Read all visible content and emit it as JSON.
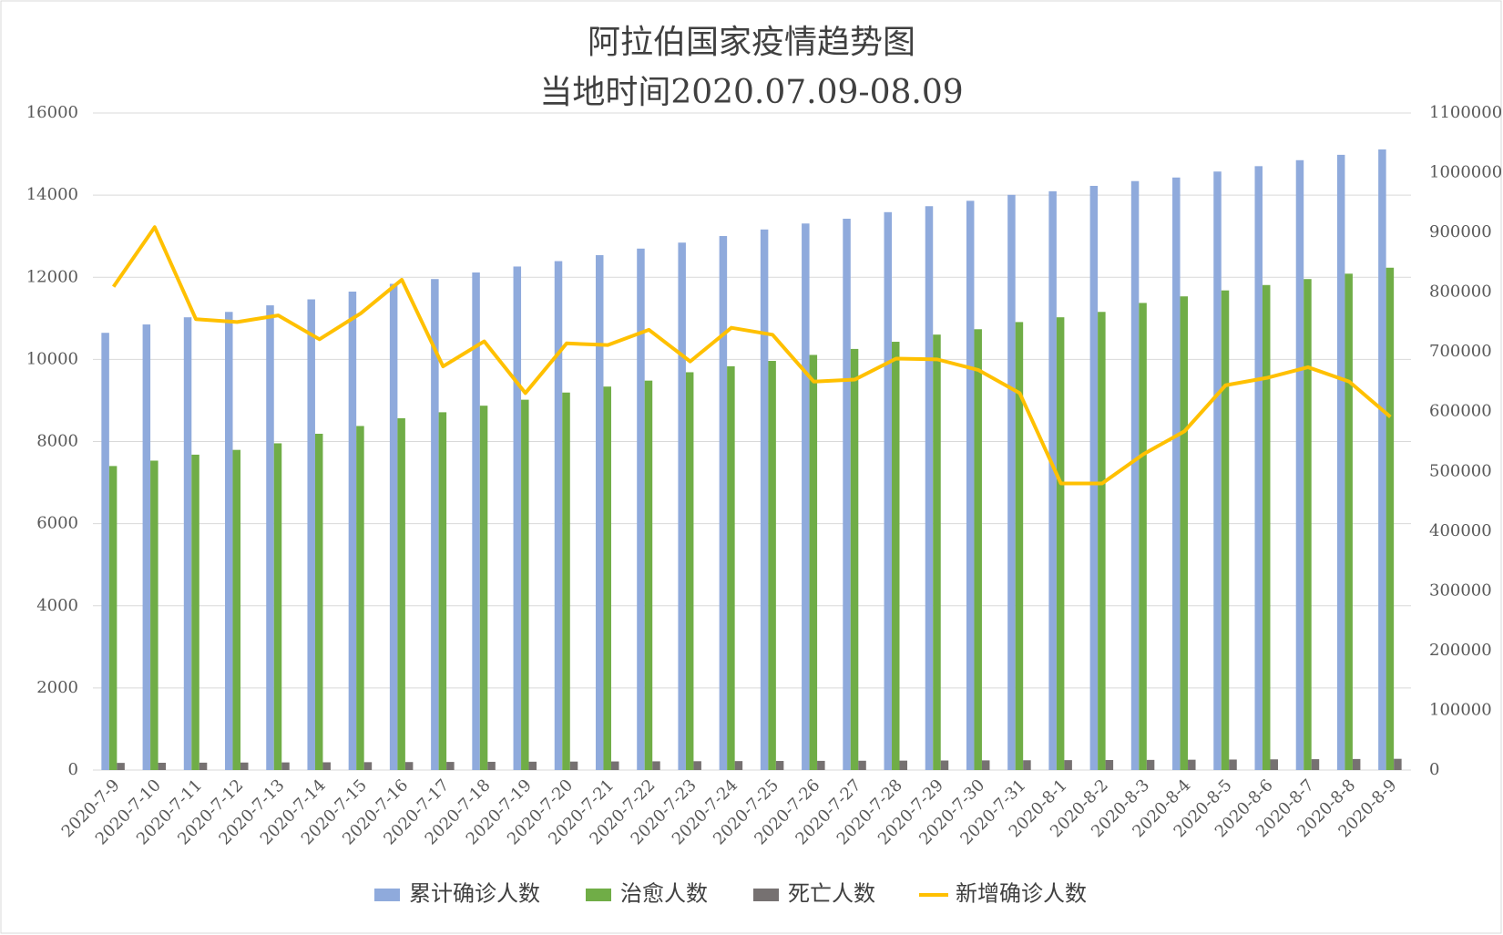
{
  "chart_data": {
    "type": "bar",
    "title": [
      "阿拉伯国家疫情趋势图",
      "当地时间2020.07.09-08.09"
    ],
    "categories": [
      "2020-7-9",
      "2020-7-10",
      "2020-7-11",
      "2020-7-12",
      "2020-7-13",
      "2020-7-14",
      "2020-7-15",
      "2020-7-16",
      "2020-7-17",
      "2020-7-18",
      "2020-7-19",
      "2020-7-20",
      "2020-7-21",
      "2020-7-22",
      "2020-7-23",
      "2020-7-24",
      "2020-7-25",
      "2020-7-26",
      "2020-7-27",
      "2020-7-28",
      "2020-7-29",
      "2020-7-30",
      "2020-7-31",
      "2020-8-1",
      "2020-8-2",
      "2020-8-3",
      "2020-8-4",
      "2020-8-5",
      "2020-8-6",
      "2020-8-7",
      "2020-8-8",
      "2020-8-9"
    ],
    "series": [
      {
        "name": "累计确诊人数",
        "type": "bar",
        "axis": "y2",
        "color": "#8faadc",
        "values": [
          732000,
          746000,
          758000,
          767000,
          778000,
          788000,
          801000,
          814000,
          822000,
          833000,
          843000,
          852000,
          862000,
          873000,
          883000,
          894000,
          905000,
          915000,
          923000,
          934000,
          944000,
          953000,
          963000,
          969000,
          978000,
          986000,
          992000,
          1002000,
          1011000,
          1021000,
          1030000,
          1039000
        ]
      },
      {
        "name": "治愈人数",
        "type": "bar",
        "axis": "y2",
        "color": "#70ad47",
        "values": [
          509000,
          518000,
          528000,
          536000,
          547000,
          563000,
          576000,
          589000,
          599000,
          610000,
          620000,
          632000,
          642000,
          652000,
          666000,
          676000,
          685000,
          695000,
          705000,
          717000,
          729000,
          738000,
          750000,
          758000,
          767000,
          782000,
          793000,
          803000,
          812000,
          822000,
          831000,
          841000
        ]
      },
      {
        "name": "死亡人数",
        "type": "bar",
        "axis": "y2",
        "color": "#767171",
        "values": [
          12000,
          12200,
          12400,
          12600,
          12800,
          13000,
          13200,
          13400,
          13600,
          13800,
          14000,
          14200,
          14400,
          14600,
          14800,
          15000,
          15200,
          15400,
          15600,
          15800,
          16000,
          16200,
          16400,
          16600,
          16800,
          17000,
          17300,
          17600,
          17900,
          18200,
          18500,
          18800
        ]
      },
      {
        "name": "新增确诊人数",
        "type": "line",
        "axis": "y",
        "color": "#ffc000",
        "values": [
          11770,
          13220,
          10980,
          10910,
          11070,
          10490,
          11120,
          11940,
          9830,
          10440,
          9180,
          10390,
          10350,
          10720,
          9950,
          10770,
          10600,
          9460,
          9510,
          10020,
          10000,
          9740,
          9180,
          6980,
          6980,
          7690,
          8250,
          9370,
          9550,
          9810,
          9460,
          8600
        ]
      }
    ],
    "ylim": [
      0,
      16000
    ],
    "yticks": [
      0,
      2000,
      4000,
      6000,
      8000,
      10000,
      12000,
      14000,
      16000
    ],
    "y2lim": [
      0,
      1100000
    ],
    "y2ticks": [
      0,
      100000,
      200000,
      300000,
      400000,
      500000,
      600000,
      700000,
      800000,
      900000,
      1000000,
      1100000
    ],
    "grid": true,
    "legend": "bottom"
  }
}
